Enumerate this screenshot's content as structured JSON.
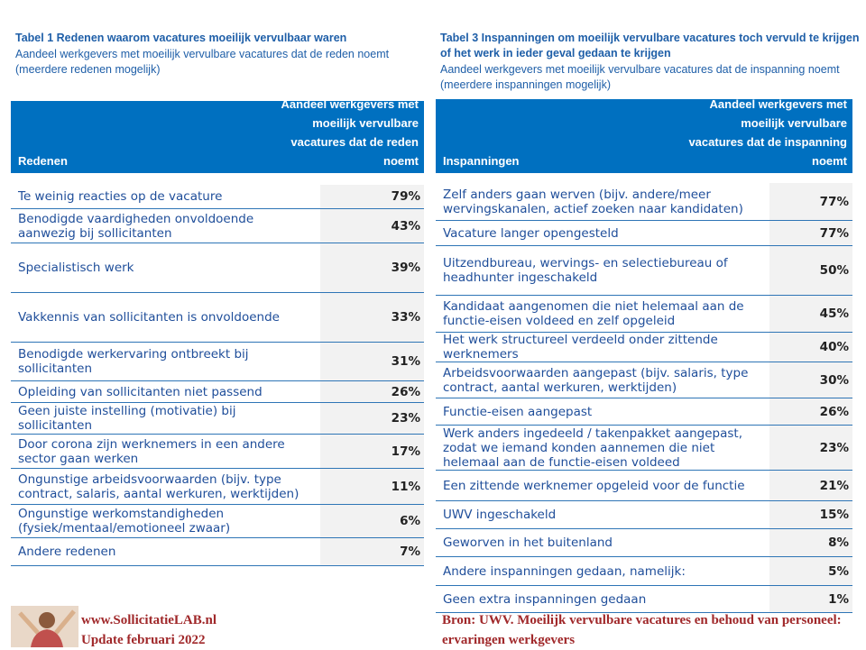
{
  "left": {
    "title": "Tabel 1 Redenen waarom vacatures moeilijk vervulbaar waren",
    "subtitle": "Aandeel werkgevers met moeilijk vervulbare vacatures dat de reden noemt (meerdere redenen mogelijk)",
    "header": [
      "Redenen",
      "Aandeel werkgevers met moeilijk vervulbare vacatures dat de reden noemt"
    ],
    "rows": [
      [
        "Te weinig reacties op de vacature",
        "79%"
      ],
      [
        "Benodigde vaardigheden onvoldoende aanwezig bij sollicitanten",
        "43%"
      ],
      [
        "Specialistisch werk",
        "39%"
      ],
      [
        "Vakkennis van sollicitanten is onvoldoende",
        "33%"
      ],
      [
        "Benodigde werkervaring ontbreekt bij sollicitanten",
        "31%"
      ],
      [
        "Opleiding van sollicitanten niet passend",
        "26%"
      ],
      [
        "Geen juiste instelling (motivatie) bij sollicitanten",
        "23%"
      ],
      [
        "Door corona zijn werknemers in een andere sector gaan werken",
        "17%"
      ],
      [
        "Ongunstige arbeidsvoorwaarden (bijv. type contract, salaris, aantal werkuren, werktijden)",
        "11%"
      ],
      [
        "Ongunstige werkomstandigheden (fysiek/mentaal/emotioneel zwaar)",
        "6%"
      ],
      [
        "Andere redenen",
        "7%"
      ]
    ]
  },
  "right": {
    "title": "Tabel 3 Inspanningen om moeilijk vervulbare vacatures toch vervuld te krijgen of het werk in ieder geval gedaan te krijgen",
    "subtitle": "Aandeel werkgevers met moeilijk vervulbare vacatures dat de inspanning noemt (meerdere inspanningen mogelijk)",
    "header": [
      "Inspanningen",
      "Aandeel werkgevers met moeilijk vervulbare vacatures dat de inspanning noemt"
    ],
    "rows": [
      [
        "Zelf anders gaan werven (bijv. andere/meer wervingskanalen, actief zoeken naar kandidaten)",
        "77%"
      ],
      [
        "Vacature langer opengesteld",
        "77%"
      ],
      [
        "Uitzendbureau, wervings- en selectiebureau of headhunter ingeschakeld",
        "50%"
      ],
      [
        "Kandidaat aangenomen die niet helemaal aan de functie-eisen voldeed en zelf opgeleid",
        "45%"
      ],
      [
        "Het werk structureel verdeeld onder zittende werknemers",
        "40%"
      ],
      [
        "Arbeidsvoorwaarden aangepast (bijv. salaris, type contract, aantal werkuren, werktijden)",
        "30%"
      ],
      [
        "Functie-eisen aangepast",
        "26%"
      ],
      [
        "Werk anders ingedeeld / takenpakket aangepast, zodat we iemand konden aannemen die niet helemaal aan de functie-eisen voldeed",
        "23%"
      ],
      [
        "Een zittende werknemer opgeleid voor de functie",
        "21%"
      ],
      [
        "UWV ingeschakeld",
        "15%"
      ],
      [
        "Geworven in het buitenland",
        "8%"
      ],
      [
        "Andere inspanningen gedaan, namelijk:",
        "5%"
      ],
      [
        "Geen extra inspanningen gedaan",
        "1%"
      ]
    ]
  },
  "footer": {
    "site": "www.SollicitatieLAB.nl",
    "update": "Update februari 2022",
    "source": "Bron: UWV. Moeilijk vervulbare vacatures en behoud van personeel: ervaringen werkgevers"
  }
}
